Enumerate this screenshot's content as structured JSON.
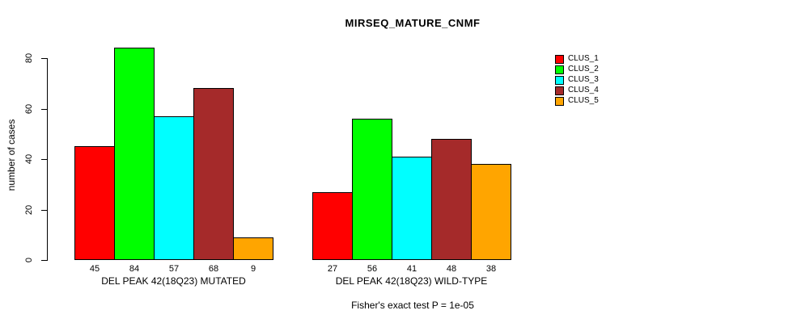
{
  "chart_data": {
    "type": "bar",
    "title": "MIRSEQ_MATURE_CNMF",
    "ylabel": "number of cases",
    "xlabel": "",
    "ylim": [
      0,
      80
    ],
    "yticks": [
      0,
      20,
      40,
      60,
      80
    ],
    "grid": false,
    "legend_position": "right",
    "categories": [
      "DEL PEAK 42(18Q23) MUTATED",
      "DEL PEAK 42(18Q23) WILD-TYPE"
    ],
    "series": [
      {
        "name": "CLUS_1",
        "color": "#ff0000",
        "values": [
          45,
          27
        ]
      },
      {
        "name": "CLUS_2",
        "color": "#00ff00",
        "values": [
          84,
          56
        ]
      },
      {
        "name": "CLUS_3",
        "color": "#00ffff",
        "values": [
          57,
          41
        ]
      },
      {
        "name": "CLUS_4",
        "color": "#a52a2a",
        "values": [
          68,
          48
        ]
      },
      {
        "name": "CLUS_5",
        "color": "#ffa500",
        "values": [
          9,
          38
        ]
      }
    ],
    "bar_value_labels": {
      "DEL PEAK 42(18Q23) MUTATED": [
        45,
        84,
        57,
        68,
        9
      ],
      "DEL PEAK 42(18Q23) WILD-TYPE": [
        27,
        56,
        41,
        48,
        38
      ]
    },
    "annotation": "Fisher's exact test P = 1e-05",
    "axis_color": "#000000",
    "bar_border_color": "#000000",
    "background_color": "#ffffff"
  }
}
